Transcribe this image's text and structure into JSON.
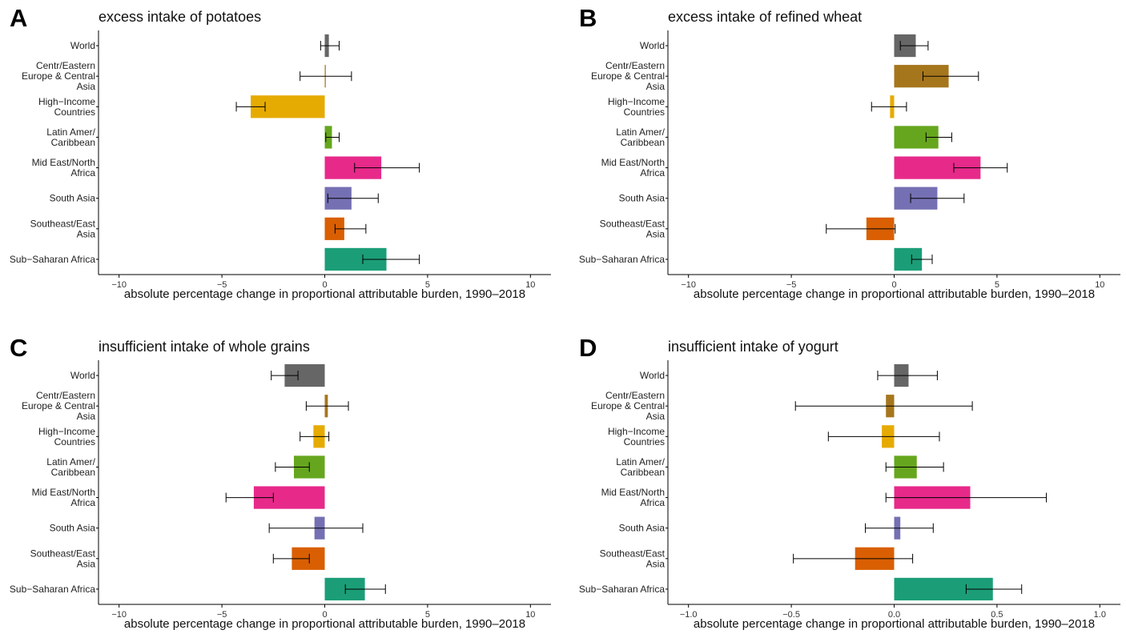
{
  "chart_data": [
    {
      "type": "bar",
      "orientation": "horizontal",
      "panel": "A",
      "title": "excess intake of potatoes",
      "xlabel": "absolute percentage change in proportional attributable burden, 1990–2018",
      "ylabel": "",
      "xlim": [
        -11,
        11
      ],
      "xticks": [
        -10,
        -5,
        0,
        5,
        10
      ],
      "xtick_labels": [
        "−10",
        "−5",
        "0",
        "5",
        "10"
      ],
      "grid": false,
      "categories": [
        [
          "World"
        ],
        [
          "Centr/Eastern",
          "Europe & Central",
          "Asia"
        ],
        [
          "High−Income",
          "Countries"
        ],
        [
          "Latin Amer/",
          "Caribbean"
        ],
        [
          "Mid East/North",
          "Africa"
        ],
        [
          "South Asia"
        ],
        [
          "Southeast/East",
          "Asia"
        ],
        [
          "Sub−Saharan Africa"
        ]
      ],
      "values": [
        0.2,
        0.05,
        -3.6,
        0.35,
        2.75,
        1.3,
        0.95,
        3.0
      ],
      "error_low": [
        -0.2,
        -1.2,
        -4.3,
        0.05,
        1.45,
        0.15,
        0.5,
        1.85
      ],
      "error_high": [
        0.7,
        1.3,
        -2.9,
        0.7,
        4.6,
        2.6,
        2.0,
        4.6
      ],
      "colors": [
        "#666666",
        "#a6761d",
        "#e6ab02",
        "#66a61e",
        "#e7298a",
        "#7570b3",
        "#d95f02",
        "#1b9e77"
      ]
    },
    {
      "type": "bar",
      "orientation": "horizontal",
      "panel": "B",
      "title": "excess intake of refined wheat",
      "xlabel": "absolute percentage change in proportional attributable burden, 1990–2018",
      "ylabel": "",
      "xlim": [
        -11,
        11
      ],
      "xticks": [
        -10,
        -5,
        0,
        5,
        10
      ],
      "xtick_labels": [
        "−10",
        "−5",
        "0",
        "5",
        "10"
      ],
      "grid": false,
      "categories": [
        [
          "World"
        ],
        [
          "Centr/Eastern",
          "Europe & Central",
          "Asia"
        ],
        [
          "High−Income",
          "Countries"
        ],
        [
          "Latin Amer/",
          "Caribbean"
        ],
        [
          "Mid East/North",
          "Africa"
        ],
        [
          "South Asia"
        ],
        [
          "Southeast/East",
          "Asia"
        ],
        [
          "Sub−Saharan Africa"
        ]
      ],
      "values": [
        1.05,
        2.65,
        -0.2,
        2.15,
        4.2,
        2.1,
        -1.35,
        1.35
      ],
      "error_low": [
        0.3,
        1.4,
        -1.1,
        1.55,
        2.9,
        0.8,
        -3.3,
        0.85
      ],
      "error_high": [
        1.65,
        4.1,
        0.6,
        2.8,
        5.5,
        3.4,
        0.05,
        1.85
      ],
      "colors": [
        "#666666",
        "#a6761d",
        "#e6ab02",
        "#66a61e",
        "#e7298a",
        "#7570b3",
        "#d95f02",
        "#1b9e77"
      ]
    },
    {
      "type": "bar",
      "orientation": "horizontal",
      "panel": "C",
      "title": "insufficient intake of whole grains",
      "xlabel": "absolute percentage change in proportional attributable burden, 1990–2018",
      "ylabel": "",
      "xlim": [
        -11,
        11
      ],
      "xticks": [
        -10,
        -5,
        0,
        5,
        10
      ],
      "xtick_labels": [
        "−10",
        "−5",
        "0",
        "5",
        "10"
      ],
      "grid": false,
      "categories": [
        [
          "World"
        ],
        [
          "Centr/Eastern",
          "Europe & Central",
          "Asia"
        ],
        [
          "High−Income",
          "Countries"
        ],
        [
          "Latin Amer/",
          "Caribbean"
        ],
        [
          "Mid East/North",
          "Africa"
        ],
        [
          "South Asia"
        ],
        [
          "Southeast/East",
          "Asia"
        ],
        [
          "Sub−Saharan Africa"
        ]
      ],
      "values": [
        -1.95,
        0.15,
        -0.55,
        -1.5,
        -3.45,
        -0.5,
        -1.6,
        1.95
      ],
      "error_low": [
        -2.6,
        -0.9,
        -1.2,
        -2.4,
        -4.8,
        -2.7,
        -2.5,
        1.0
      ],
      "error_high": [
        -1.3,
        1.15,
        0.2,
        -0.75,
        -2.5,
        1.85,
        -0.75,
        2.95
      ],
      "colors": [
        "#666666",
        "#a6761d",
        "#e6ab02",
        "#66a61e",
        "#e7298a",
        "#7570b3",
        "#d95f02",
        "#1b9e77"
      ]
    },
    {
      "type": "bar",
      "orientation": "horizontal",
      "panel": "D",
      "title": "insufficient intake of yogurt",
      "xlabel": "absolute percentage change in proportional attributable burden, 1990–2018",
      "ylabel": "",
      "xlim": [
        -1.1,
        1.1
      ],
      "xticks": [
        -1.0,
        -0.5,
        0.0,
        0.5,
        1.0
      ],
      "xtick_labels": [
        "−1.0",
        "−0.5",
        "0.0",
        "0.5",
        "1.0"
      ],
      "grid": false,
      "categories": [
        [
          "World"
        ],
        [
          "Centr/Eastern",
          "Europe & Central",
          "Asia"
        ],
        [
          "High−Income",
          "Countries"
        ],
        [
          "Latin Amer/",
          "Caribbean"
        ],
        [
          "Mid East/North",
          "Africa"
        ],
        [
          "South Asia"
        ],
        [
          "Southeast/East",
          "Asia"
        ],
        [
          "Sub−Saharan Africa"
        ]
      ],
      "values": [
        0.07,
        -0.04,
        -0.06,
        0.11,
        0.37,
        0.03,
        -0.19,
        0.48
      ],
      "error_low": [
        -0.08,
        -0.48,
        -0.32,
        -0.04,
        -0.04,
        -0.14,
        -0.49,
        0.35
      ],
      "error_high": [
        0.21,
        0.38,
        0.22,
        0.24,
        0.74,
        0.19,
        0.09,
        0.62
      ],
      "colors": [
        "#666666",
        "#a6761d",
        "#e6ab02",
        "#66a61e",
        "#e7298a",
        "#7570b3",
        "#d95f02",
        "#1b9e77"
      ]
    }
  ]
}
